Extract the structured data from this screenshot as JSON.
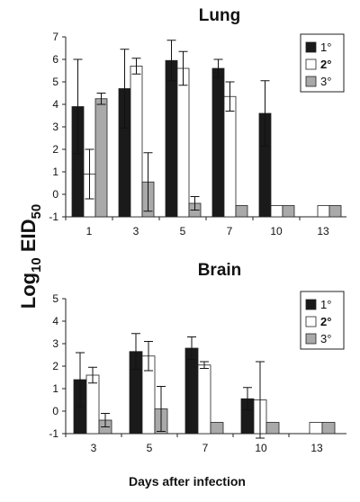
{
  "ylabel_main": "Log",
  "ylabel_sub": "10",
  "ylabel_main2": " EID",
  "ylabel_sub2": "50",
  "xlabel": "Days after infection",
  "colors": {
    "s1": "#1a1a1a",
    "s2": "#ffffff",
    "s3": "#a9a9a9"
  },
  "legend_labels": [
    "1°",
    "2°",
    "3°"
  ],
  "chart_data": [
    {
      "type": "bar",
      "title": "Lung",
      "categories": [
        "1",
        "3",
        "5",
        "7",
        "10",
        "13"
      ],
      "ylim": [
        -1,
        7
      ],
      "yticks": [
        -1,
        0,
        1,
        2,
        3,
        4,
        5,
        6,
        7
      ],
      "legend_position": "top-right",
      "series": [
        {
          "name": "1°",
          "values": [
            3.9,
            4.7,
            5.95,
            5.6,
            3.6,
            null
          ],
          "err": [
            2.1,
            1.75,
            0.9,
            0.4,
            1.45,
            null
          ]
        },
        {
          "name": "2°",
          "values": [
            0.9,
            5.7,
            5.6,
            4.35,
            -0.5,
            -0.5
          ],
          "err": [
            1.1,
            0.35,
            0.75,
            0.65,
            0,
            0
          ]
        },
        {
          "name": "3°",
          "values": [
            4.25,
            0.55,
            -0.4,
            -0.5,
            -0.5,
            -0.5
          ],
          "err": [
            0.25,
            1.3,
            0.3,
            0,
            0,
            0
          ]
        }
      ]
    },
    {
      "type": "bar",
      "title": "Brain",
      "categories": [
        "3",
        "5",
        "7",
        "10",
        "13"
      ],
      "ylim": [
        -1,
        5
      ],
      "yticks": [
        -1,
        0,
        1,
        2,
        3,
        4,
        5
      ],
      "legend_position": "top-right",
      "series": [
        {
          "name": "1°",
          "values": [
            1.4,
            2.65,
            2.8,
            0.55,
            null
          ],
          "err": [
            1.2,
            0.8,
            0.5,
            0.5,
            null
          ]
        },
        {
          "name": "2°",
          "values": [
            1.6,
            2.45,
            2.05,
            0.5,
            -0.5
          ],
          "err": [
            0.35,
            0.65,
            0.15,
            1.7,
            0
          ]
        },
        {
          "name": "3°",
          "values": [
            -0.4,
            0.1,
            -0.5,
            -0.5,
            -0.5
          ],
          "err": [
            0.3,
            1.0,
            0,
            0,
            0
          ]
        }
      ]
    }
  ]
}
